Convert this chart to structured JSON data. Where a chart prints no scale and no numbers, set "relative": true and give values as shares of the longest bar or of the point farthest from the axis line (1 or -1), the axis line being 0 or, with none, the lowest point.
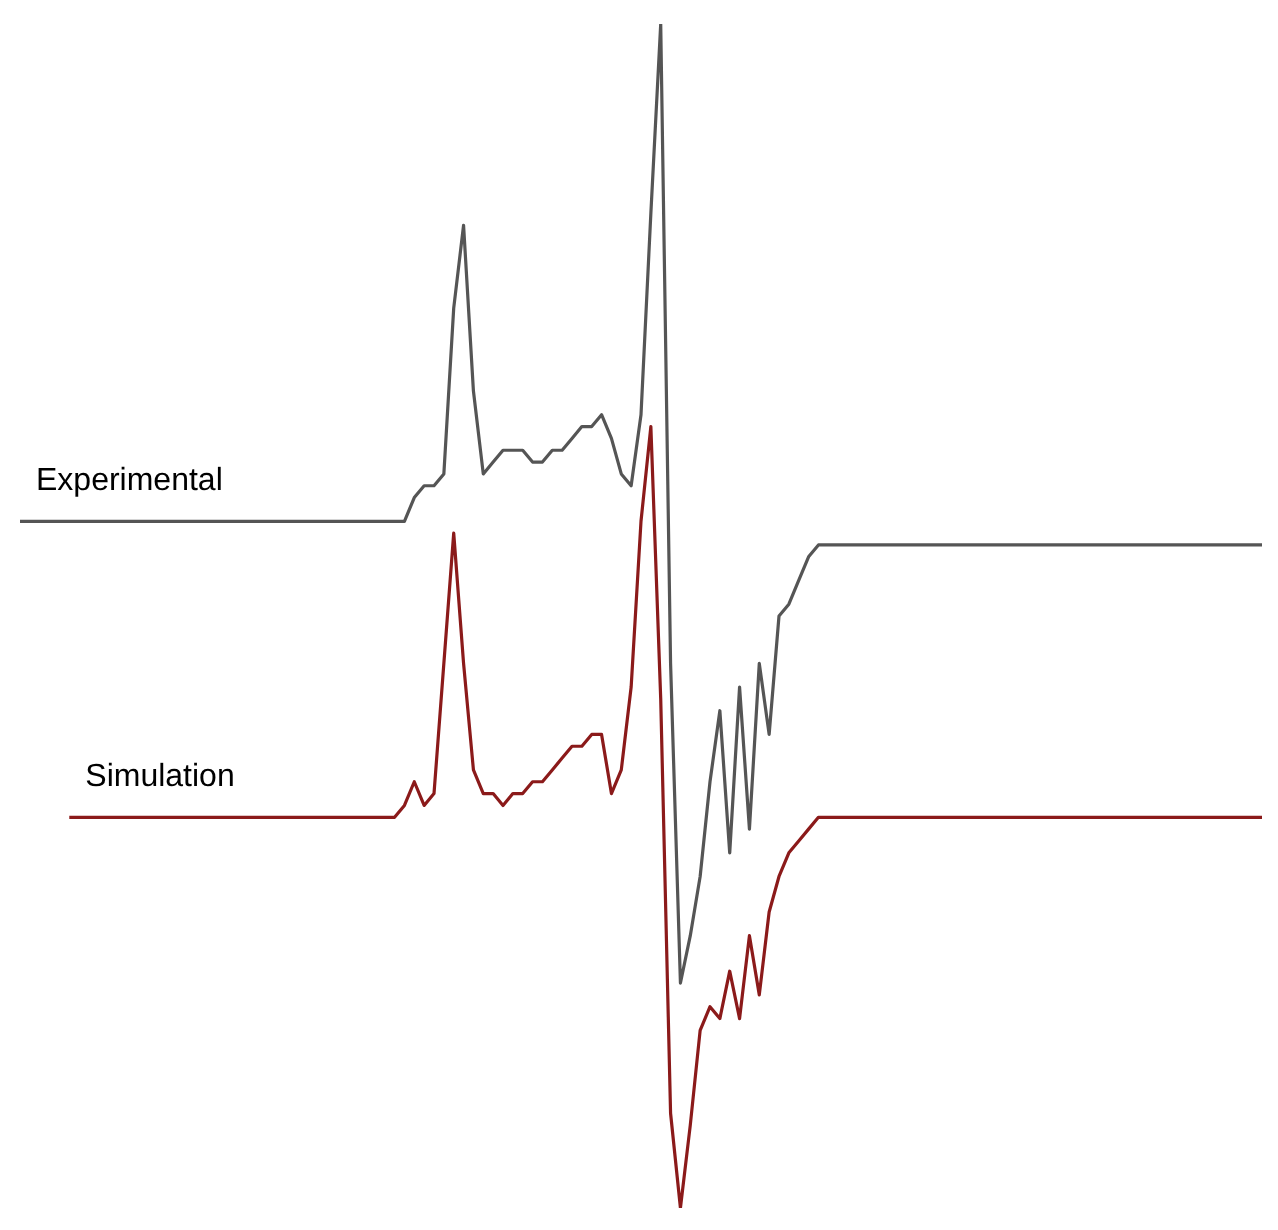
{
  "chart_data": {
    "type": "line",
    "relative": true,
    "legend": false,
    "marker": "none",
    "line_style": "solid",
    "categories": [
      null,
      null,
      null,
      null,
      null,
      null,
      null,
      null,
      null,
      null,
      null,
      null,
      null,
      null,
      null,
      null,
      null,
      null,
      null,
      null,
      null,
      null,
      null,
      null,
      null,
      null,
      null,
      null,
      null,
      null,
      null,
      null,
      null,
      null,
      null,
      null,
      null,
      null,
      null,
      null,
      null,
      null,
      null,
      null,
      null,
      null,
      null,
      null,
      null,
      null,
      null,
      null,
      null,
      null,
      null,
      null,
      null,
      null,
      null,
      null,
      null,
      null,
      null,
      null,
      null,
      null,
      null,
      null,
      null,
      null,
      null,
      null,
      null,
      null,
      null,
      null,
      null,
      null,
      null,
      null,
      null,
      null,
      null,
      null,
      null,
      null,
      null,
      null,
      null,
      null,
      null,
      null,
      null,
      null,
      null,
      null,
      null,
      null,
      null,
      null,
      null,
      null,
      null,
      null,
      null,
      null,
      null,
      null,
      null,
      null,
      null,
      null,
      null,
      null,
      null,
      null,
      null,
      null,
      null,
      null,
      null,
      null,
      null,
      null,
      null,
      null,
      null
    ],
    "series": [
      {
        "name": "Experimental",
        "color": "#555555",
        "values": [
          0.58,
          0.58,
          0.58,
          0.58,
          0.58,
          0.58,
          0.58,
          0.58,
          0.58,
          0.58,
          0.58,
          0.58,
          0.58,
          0.58,
          0.58,
          0.58,
          0.58,
          0.58,
          0.58,
          0.58,
          0.58,
          0.58,
          0.58,
          0.58,
          0.58,
          0.58,
          0.58,
          0.58,
          0.58,
          0.58,
          0.58,
          0.58,
          0.58,
          0.58,
          0.58,
          0.58,
          0.58,
          0.58,
          0.58,
          0.58,
          0.6,
          0.61,
          0.61,
          0.62,
          0.76,
          0.83,
          0.69,
          0.62,
          0.63,
          0.64,
          0.64,
          0.64,
          0.63,
          0.63,
          0.64,
          0.64,
          0.65,
          0.66,
          0.66,
          0.67,
          0.65,
          0.62,
          0.61,
          0.67,
          0.84,
          1,
          0.46,
          0.19,
          0.23,
          0.28,
          0.36,
          0.42,
          0.3,
          0.44,
          0.32,
          0.46,
          0.4,
          0.5,
          0.51,
          0.53,
          0.55,
          0.56,
          0.56,
          0.56,
          0.56,
          0.56,
          0.56,
          0.56,
          0.56,
          0.56,
          0.56,
          0.56,
          0.56,
          0.56,
          0.56,
          0.56,
          0.56,
          0.56,
          0.56,
          0.56,
          0.56,
          0.56,
          0.56,
          0.56,
          0.56,
          0.56,
          0.56,
          0.56,
          0.56,
          0.56,
          0.56,
          0.56,
          0.56,
          0.56,
          0.56,
          0.56,
          0.56,
          0.56,
          0.56,
          0.56,
          0.56,
          0.56,
          0.56,
          0.56,
          0.56,
          0.56,
          0.56
        ]
      },
      {
        "name": "Simulation",
        "color": "#8b1a1a",
        "values": [
          null,
          null,
          null,
          null,
          null,
          0.33,
          0.33,
          0.33,
          0.33,
          0.33,
          0.33,
          0.33,
          0.33,
          0.33,
          0.33,
          0.33,
          0.33,
          0.33,
          0.33,
          0.33,
          0.33,
          0.33,
          0.33,
          0.33,
          0.33,
          0.33,
          0.33,
          0.33,
          0.33,
          0.33,
          0.33,
          0.33,
          0.33,
          0.33,
          0.33,
          0.33,
          0.33,
          0.33,
          0.33,
          0.34,
          0.36,
          0.34,
          0.35,
          0.46,
          0.57,
          0.46,
          0.37,
          0.35,
          0.35,
          0.34,
          0.35,
          0.35,
          0.36,
          0.36,
          0.37,
          0.38,
          0.39,
          0.39,
          0.4,
          0.4,
          0.35,
          0.37,
          0.44,
          0.58,
          0.66,
          0.43,
          0.08,
          0,
          0.07,
          0.15,
          0.17,
          0.16,
          0.2,
          0.16,
          0.23,
          0.18,
          0.25,
          0.28,
          0.3,
          0.31,
          0.32,
          0.33,
          0.33,
          0.33,
          0.33,
          0.33,
          0.33,
          0.33,
          0.33,
          0.33,
          0.33,
          0.33,
          0.33,
          0.33,
          0.33,
          0.33,
          0.33,
          0.33,
          0.33,
          0.33,
          0.33,
          0.33,
          0.33,
          0.33,
          0.33,
          0.33,
          0.33,
          0.33,
          0.33,
          0.33,
          0.33,
          0.33,
          0.33,
          0.33,
          0.33,
          0.33,
          0.33,
          0.33,
          0.33,
          0.33,
          0.33,
          0.33,
          0.33,
          0.33,
          0.33,
          0.33,
          0.33
        ]
      }
    ]
  }
}
